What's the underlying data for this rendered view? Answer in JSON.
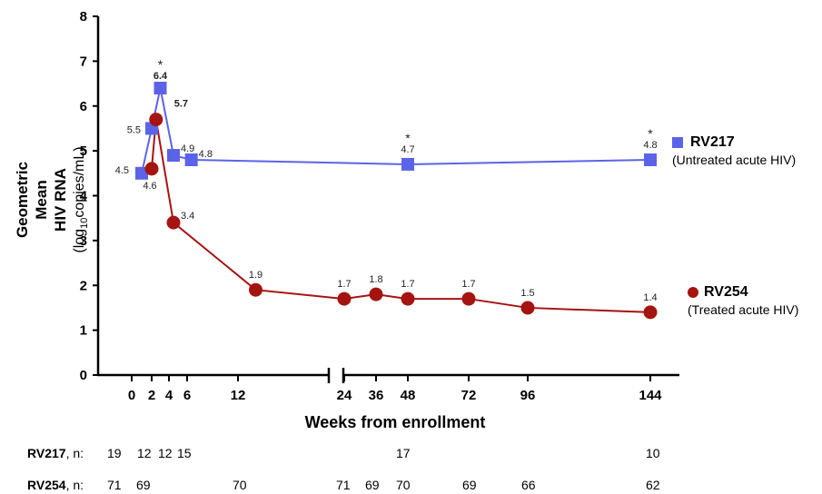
{
  "chart_data": {
    "type": "line",
    "xlabel": "Weeks from enrollment",
    "ylabel": {
      "line1": "Geometric Mean",
      "line2": "HIV RNA",
      "unit_prefix": "(log",
      "unit_sub": "10",
      "unit_suffix": "copies/mL)"
    },
    "ylim": [
      0,
      8
    ],
    "yticks": [
      "0",
      "1",
      "2",
      "3",
      "4",
      "5",
      "6",
      "7",
      "8"
    ],
    "xticks": [
      "0",
      "2",
      "4",
      "6",
      "12",
      "24",
      "36",
      "48",
      "72",
      "96",
      "144"
    ],
    "axis_break": "between 12 and 24",
    "grid": false,
    "legend_position": "right",
    "series": [
      {
        "name": "RV217",
        "description": "(Untreated acute HIV)",
        "color": "#5b63e8",
        "marker": "square",
        "points": [
          {
            "x": 1,
            "y": 4.5,
            "label": "4.5",
            "bold": false,
            "star": false
          },
          {
            "x": 2,
            "y": 5.5,
            "label": "5.5",
            "bold": false,
            "star": false
          },
          {
            "x": 3,
            "y": 6.4,
            "label": "6.4",
            "bold": true,
            "star": true
          },
          {
            "x": 4.5,
            "y": 4.9,
            "label": "4.9",
            "bold": false,
            "star": false
          },
          {
            "x": 6.5,
            "y": 4.8,
            "label": "4.8",
            "bold": false,
            "star": false
          },
          {
            "x": 48,
            "y": 4.7,
            "label": "4.7",
            "bold": false,
            "star": true
          },
          {
            "x": 144,
            "y": 4.8,
            "label": "4.8",
            "bold": false,
            "star": true
          }
        ]
      },
      {
        "name": "RV254",
        "description": "(Treated acute HIV)",
        "color": "#a51410",
        "marker": "circle",
        "points": [
          {
            "x": 2,
            "y": 4.6,
            "label": "4.6",
            "bold": false,
            "star": false
          },
          {
            "x": 2.5,
            "y": 5.7,
            "label": "5.7",
            "bold": true,
            "star": false
          },
          {
            "x": 4.5,
            "y": 3.4,
            "label": "3.4",
            "bold": false,
            "star": false
          },
          {
            "x": 14,
            "y": 1.9,
            "label": "1.9",
            "bold": false,
            "star": false
          },
          {
            "x": 24,
            "y": 1.7,
            "label": "1.7",
            "bold": false,
            "star": false
          },
          {
            "x": 36,
            "y": 1.8,
            "label": "1.8",
            "bold": false,
            "star": false
          },
          {
            "x": 48,
            "y": 1.7,
            "label": "1.7",
            "bold": false,
            "star": false
          },
          {
            "x": 72,
            "y": 1.7,
            "label": "1.7",
            "bold": false,
            "star": false
          },
          {
            "x": 96,
            "y": 1.5,
            "label": "1.5",
            "bold": false,
            "star": false
          },
          {
            "x": 144,
            "y": 1.4,
            "label": "1.4",
            "bold": false,
            "star": false
          }
        ]
      }
    ],
    "n_rows": [
      {
        "name": "RV217",
        "prefix": ", n:",
        "counts": [
          "19",
          "12",
          "12",
          "15",
          "17",
          "10"
        ]
      },
      {
        "name": "RV254",
        "prefix": ", n:",
        "counts": [
          "71",
          "69",
          "70",
          "71",
          "69",
          "70",
          "69",
          "66",
          "62"
        ]
      }
    ]
  }
}
